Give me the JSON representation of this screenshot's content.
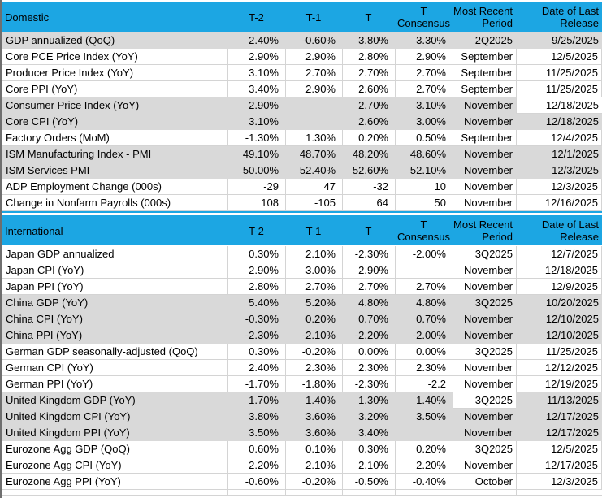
{
  "colors": {
    "header_blue": "#1ca6e3",
    "row_gray": "#d9d9d9",
    "gridline": "#d4d4d4",
    "left_edge": "#6f6f6f",
    "text": "#000000"
  },
  "columns": [
    "T-2",
    "T-1",
    "T",
    "T Consensus",
    "Most Recent Period",
    "Date of Last Release"
  ],
  "sections": [
    {
      "title": "Domestic",
      "rows": [
        {
          "label": "GDP annualized (QoQ)",
          "values": [
            "2.40%",
            "-0.60%",
            "3.80%",
            "3.30%"
          ],
          "period": "2Q2025",
          "date": "9/25/2025",
          "shade": "gray"
        },
        {
          "label": "Core PCE Price Index (YoY)",
          "values": [
            "2.90%",
            "2.90%",
            "2.80%",
            "2.90%"
          ],
          "period": "September",
          "date": "12/5/2025",
          "shade": "white"
        },
        {
          "label": "Producer Price Index (YoY)",
          "values": [
            "3.10%",
            "2.70%",
            "2.70%",
            "2.70%"
          ],
          "period": "September",
          "date": "11/25/2025",
          "shade": "white"
        },
        {
          "label": "Core PPI (YoY)",
          "values": [
            "3.40%",
            "2.90%",
            "2.60%",
            "2.70%"
          ],
          "period": "September",
          "date": "11/25/2025",
          "shade": "white"
        },
        {
          "label": "Consumer Price Index (YoY)",
          "values": [
            "2.90%",
            "",
            "2.70%",
            "3.10%"
          ],
          "period": "November",
          "date": "12/18/2025",
          "shade": "gray",
          "white_cell": "date"
        },
        {
          "label": "Core CPI  (YoY)",
          "values": [
            "3.10%",
            "",
            "2.60%",
            "3.00%"
          ],
          "period": "November",
          "date": "12/18/2025",
          "shade": "gray"
        },
        {
          "label": "Factory Orders (MoM)",
          "values": [
            "-1.30%",
            "1.30%",
            "0.20%",
            "0.50%"
          ],
          "period": "September",
          "date": "12/4/2025",
          "shade": "white"
        },
        {
          "label": "ISM Manufacturing Index - PMI",
          "values": [
            "49.10%",
            "48.70%",
            "48.20%",
            "48.60%"
          ],
          "period": "November",
          "date": "12/1/2025",
          "shade": "gray"
        },
        {
          "label": "ISM Services PMI",
          "values": [
            "50.00%",
            "52.40%",
            "52.60%",
            "52.10%"
          ],
          "period": "November",
          "date": "12/3/2025",
          "shade": "gray"
        },
        {
          "label": "ADP Employment Change (000s)",
          "values": [
            "-29",
            "47",
            "-32",
            "10"
          ],
          "period": "November",
          "date": "12/3/2025",
          "shade": "white"
        },
        {
          "label": "Change in Nonfarm Payrolls (000s)",
          "values": [
            "108",
            "-105",
            "64",
            "50"
          ],
          "period": "November",
          "date": "12/16/2025",
          "shade": "white"
        }
      ]
    },
    {
      "title": "International",
      "rows": [
        {
          "label": "Japan GDP annualized",
          "values": [
            "0.30%",
            "2.10%",
            "-2.30%",
            "-2.00%"
          ],
          "period": "3Q2025",
          "date": "12/7/2025",
          "shade": "white"
        },
        {
          "label": "Japan CPI (YoY)",
          "values": [
            "2.90%",
            "3.00%",
            "2.90%",
            ""
          ],
          "period": "November",
          "date": "12/18/2025",
          "shade": "white"
        },
        {
          "label": "Japan PPI (YoY)",
          "values": [
            "2.80%",
            "2.70%",
            "2.70%",
            "2.70%"
          ],
          "period": "November",
          "date": "12/9/2025",
          "shade": "white"
        },
        {
          "label": "China GDP (YoY)",
          "values": [
            "5.40%",
            "5.20%",
            "4.80%",
            "4.80%"
          ],
          "period": "3Q2025",
          "date": "10/20/2025",
          "shade": "gray"
        },
        {
          "label": "China CPI (YoY)",
          "values": [
            "-0.30%",
            "0.20%",
            "0.70%",
            "0.70%"
          ],
          "period": "November",
          "date": "12/10/2025",
          "shade": "gray"
        },
        {
          "label": "China PPI (YoY)",
          "values": [
            "-2.30%",
            "-2.10%",
            "-2.20%",
            "-2.00%"
          ],
          "period": "November",
          "date": "12/10/2025",
          "shade": "gray"
        },
        {
          "label": "German GDP seasonally-adjusted (QoQ)",
          "values": [
            "0.30%",
            "-0.20%",
            "0.00%",
            "0.00%"
          ],
          "period": "3Q2025",
          "date": "11/25/2025",
          "shade": "white"
        },
        {
          "label": "German CPI (YoY)",
          "values": [
            "2.40%",
            "2.30%",
            "2.30%",
            "2.30%"
          ],
          "period": "November",
          "date": "12/12/2025",
          "shade": "white"
        },
        {
          "label": "German PPI (YoY)",
          "values": [
            "-1.70%",
            "-1.80%",
            "-2.30%",
            "-2.2"
          ],
          "period": "November",
          "date": "12/19/2025",
          "shade": "white"
        },
        {
          "label": "United Kingdom GDP (YoY)",
          "values": [
            "1.70%",
            "1.40%",
            "1.30%",
            "1.40%"
          ],
          "period": "3Q2025",
          "date": "11/13/2025",
          "shade": "gray",
          "white_cell": "period"
        },
        {
          "label": "United Kingdom CPI (YoY)",
          "values": [
            "3.80%",
            "3.60%",
            "3.20%",
            "3.50%"
          ],
          "period": "November",
          "date": "12/17/2025",
          "shade": "gray"
        },
        {
          "label": "United Kingdom  PPI (YoY)",
          "values": [
            "3.50%",
            "3.60%",
            "3.40%",
            ""
          ],
          "period": "November",
          "date": "12/17/2025",
          "shade": "gray"
        },
        {
          "label": "Eurozone Agg GDP (QoQ)",
          "values": [
            "0.60%",
            "0.10%",
            "0.30%",
            "0.20%"
          ],
          "period": "3Q2025",
          "date": "12/5/2025",
          "shade": "white"
        },
        {
          "label": "Eurozone Agg CPI (YoY)",
          "values": [
            "2.20%",
            "2.10%",
            "2.10%",
            "2.20%"
          ],
          "period": "November",
          "date": "12/17/2025",
          "shade": "white"
        },
        {
          "label": "Eurozone Agg PPI (YoY)",
          "values": [
            "-0.60%",
            "-0.20%",
            "-0.50%",
            "-0.40%"
          ],
          "period": "October",
          "date": "12/3/2025",
          "shade": "white"
        }
      ]
    }
  ]
}
